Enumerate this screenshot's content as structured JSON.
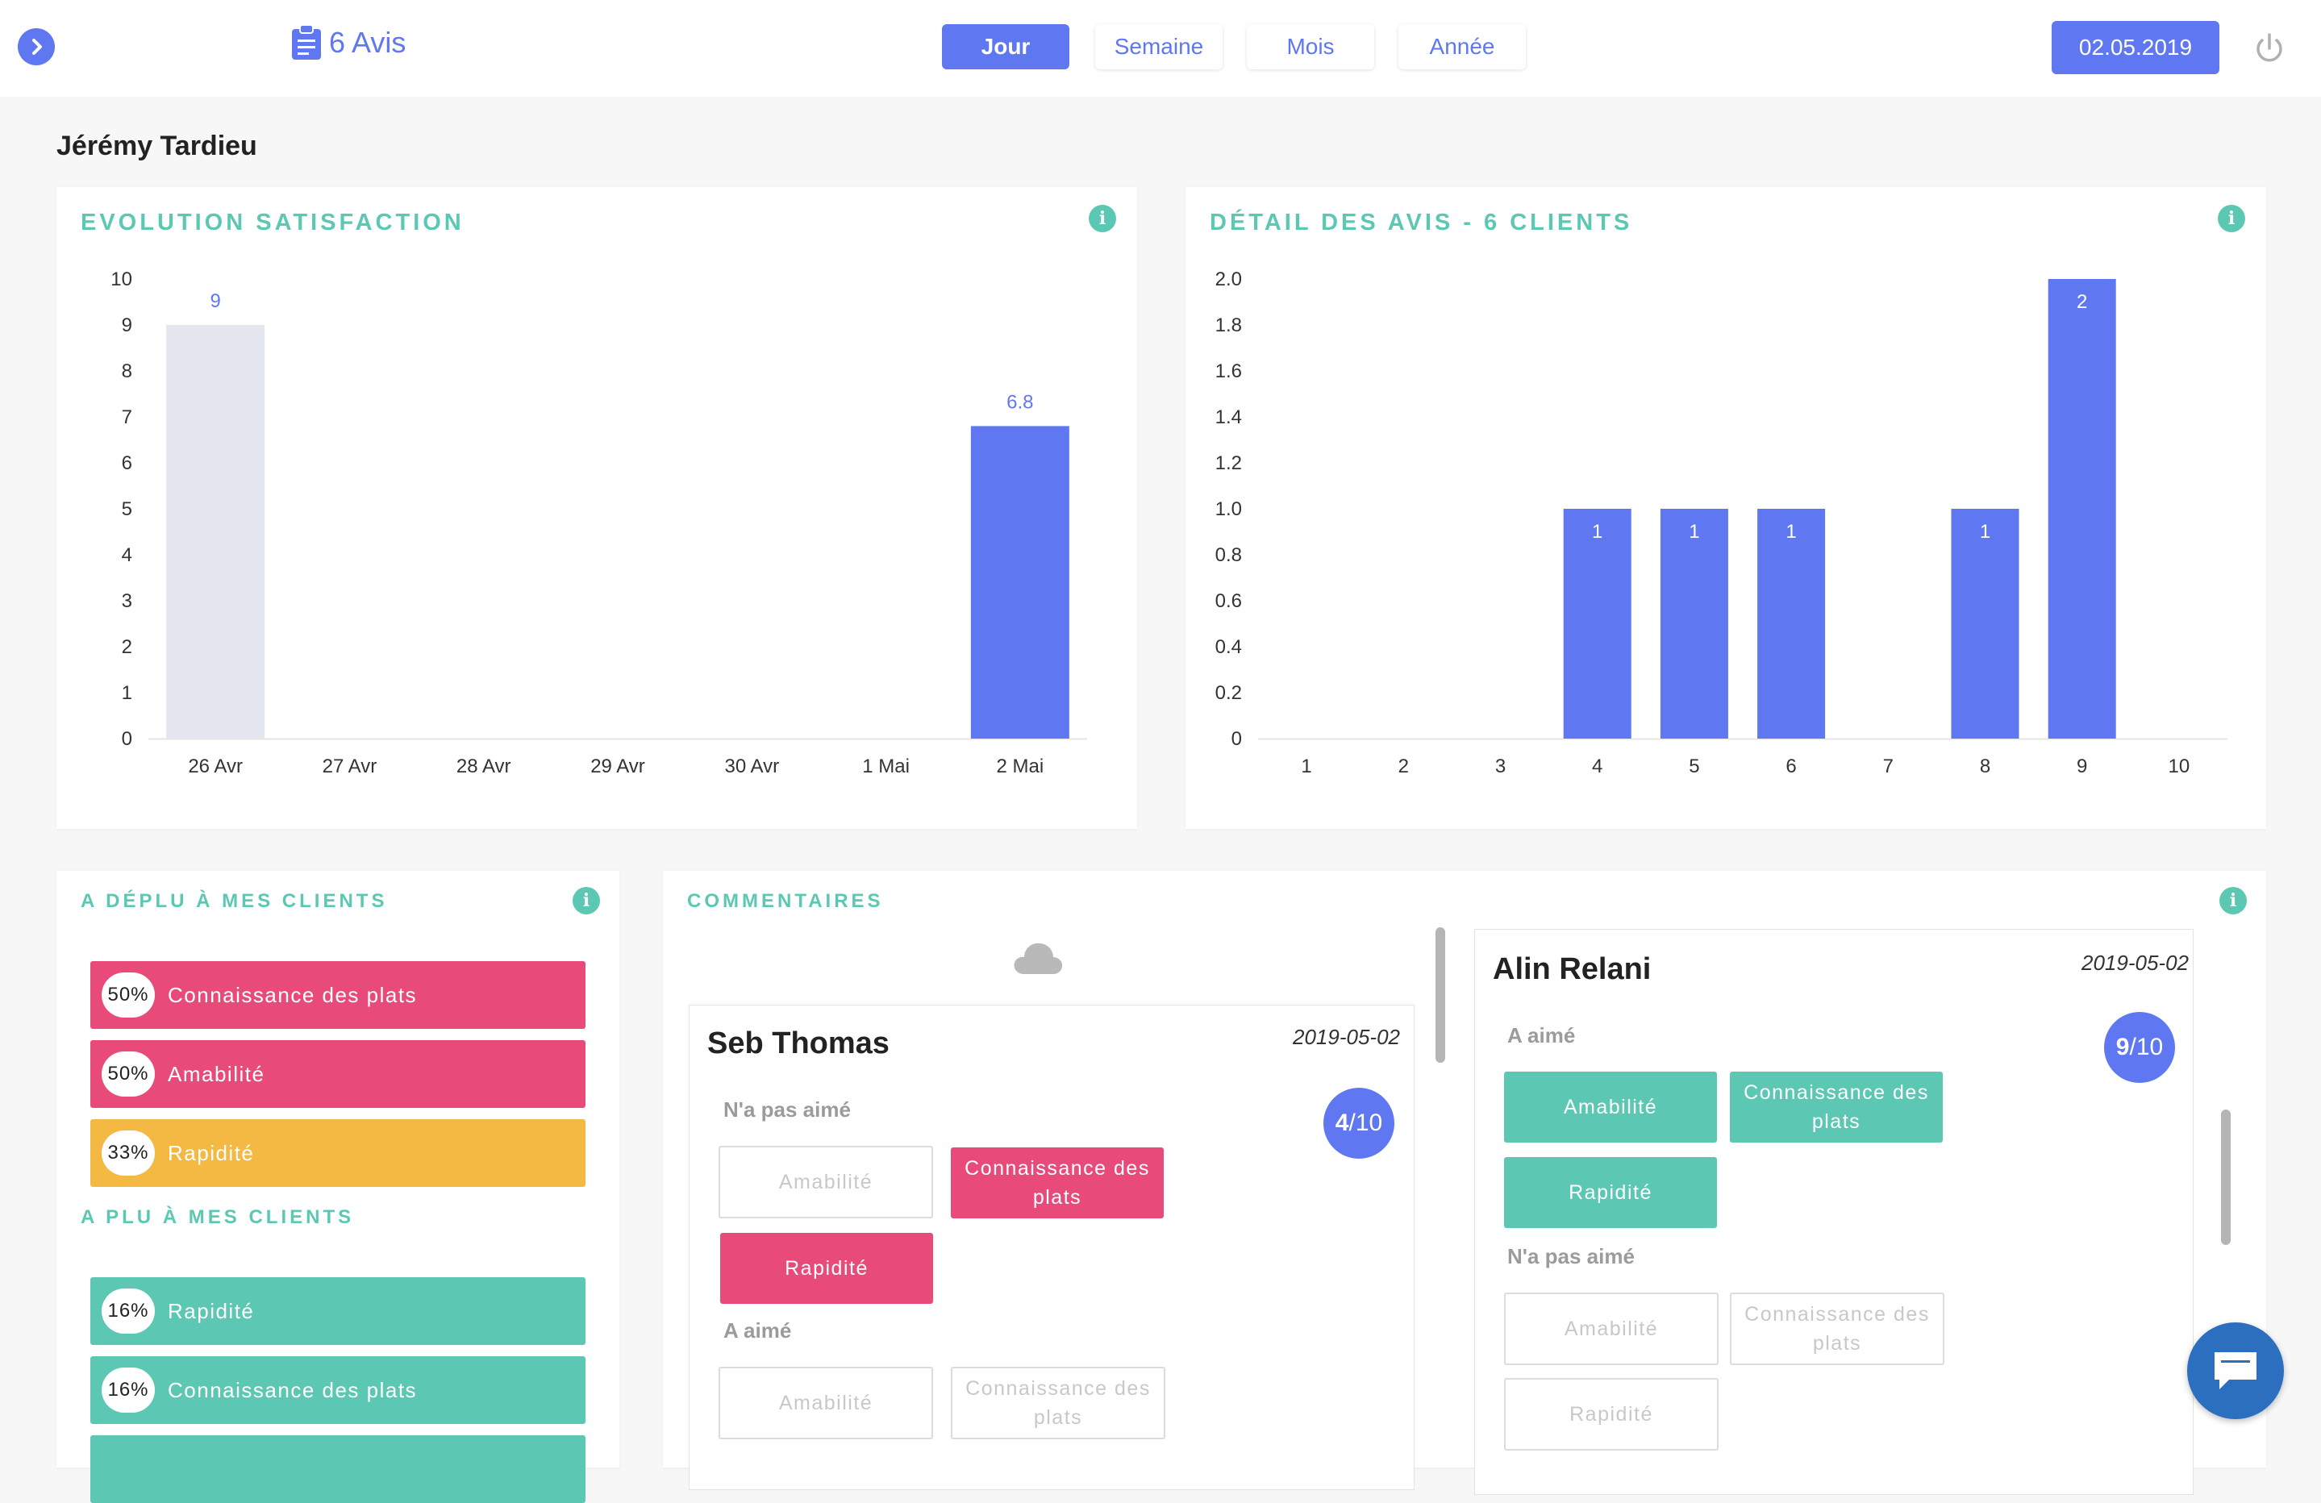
{
  "header": {
    "avis_label": "6 Avis",
    "periods": [
      "Jour",
      "Semaine",
      "Mois",
      "Année"
    ],
    "active_period": "Jour",
    "date": "02.05.2019"
  },
  "user": {
    "name": "Jérémy Tardieu"
  },
  "colors": {
    "accent": "#5f78f1",
    "teal": "#5cc8b3",
    "pink": "#e84b7a",
    "yellow": "#f4b942",
    "muted_bar": "#e3e6ef"
  },
  "satisfaction_card": {
    "title": "Evolution satisfaction"
  },
  "detail_card": {
    "title": "Détail des avis - 6 clients"
  },
  "chart_data": [
    {
      "type": "bar",
      "title": "Evolution satisfaction",
      "categories": [
        "26 Avr",
        "27 Avr",
        "28 Avr",
        "29 Avr",
        "30 Avr",
        "1 Mai",
        "2 Mai"
      ],
      "values": [
        9,
        null,
        null,
        null,
        null,
        null,
        6.8
      ],
      "data_labels": [
        "9",
        "",
        "",
        "",
        "",
        "",
        "6.8"
      ],
      "highlight_index": 6,
      "ylim": [
        0,
        10
      ],
      "yticks": [
        "0",
        "1",
        "2",
        "3",
        "4",
        "5",
        "6",
        "7",
        "8",
        "9",
        "10"
      ],
      "grid": false
    },
    {
      "type": "bar",
      "title": "Détail des avis - 6 clients",
      "categories": [
        "1",
        "2",
        "3",
        "4",
        "5",
        "6",
        "7",
        "8",
        "9",
        "10"
      ],
      "values": [
        0,
        0,
        0,
        1,
        1,
        1,
        0,
        1,
        2,
        0
      ],
      "data_labels": [
        "",
        "",
        "",
        "1",
        "1",
        "1",
        "",
        "1",
        "2",
        ""
      ],
      "ylim": [
        0,
        2
      ],
      "yticks": [
        "0",
        "0.2",
        "0.4",
        "0.6",
        "0.8",
        "1.0",
        "1.2",
        "1.4",
        "1.6",
        "1.8",
        "2.0"
      ],
      "grid": false
    }
  ],
  "disliked_card": {
    "title": "A déplu à mes clients",
    "items": [
      {
        "pct": "50%",
        "label": "Connaissance des plats",
        "color": "#e84b7a"
      },
      {
        "pct": "50%",
        "label": "Amabilité",
        "color": "#e84b7a"
      },
      {
        "pct": "33%",
        "label": "Rapidité",
        "color": "#f4b942"
      }
    ]
  },
  "liked_card": {
    "title": "A plu à mes clients",
    "items": [
      {
        "pct": "16%",
        "label": "Rapidité",
        "color": "#5cc8b3"
      },
      {
        "pct": "16%",
        "label": "Connaissance des plats",
        "color": "#5cc8b3"
      }
    ]
  },
  "comments_card": {
    "title": "Commentaires",
    "comments": [
      {
        "author": "Seb Thomas",
        "date": "2019-05-02",
        "score": "4",
        "score_total": "/10",
        "disliked_label": "N'a pas aimé",
        "liked_label": "A aimé",
        "disliked_tags": [
          {
            "label": "Amabilité",
            "state": "off"
          },
          {
            "label": "Connaissance des plats",
            "state": "on"
          },
          {
            "label": "Rapidité",
            "state": "on"
          }
        ],
        "liked_tags": [
          {
            "label": "Amabilité",
            "state": "off"
          },
          {
            "label": "Connaissance des plats",
            "state": "off"
          }
        ]
      },
      {
        "author": "Alin Relani",
        "date": "2019-05-02",
        "score": "9",
        "score_total": "/10",
        "liked_label": "A aimé",
        "disliked_label": "N'a pas aimé",
        "liked_tags": [
          {
            "label": "Amabilité",
            "state": "on"
          },
          {
            "label": "Connaissance des plats",
            "state": "on"
          },
          {
            "label": "Rapidité",
            "state": "on"
          }
        ],
        "disliked_tags": [
          {
            "label": "Amabilité",
            "state": "off"
          },
          {
            "label": "Connaissance des plats",
            "state": "off"
          },
          {
            "label": "Rapidité",
            "state": "off"
          }
        ]
      }
    ]
  },
  "icons": [
    "chevron-right-icon",
    "clipboard-icon",
    "power-icon",
    "info-icon",
    "cloud-icon",
    "chat-icon"
  ]
}
